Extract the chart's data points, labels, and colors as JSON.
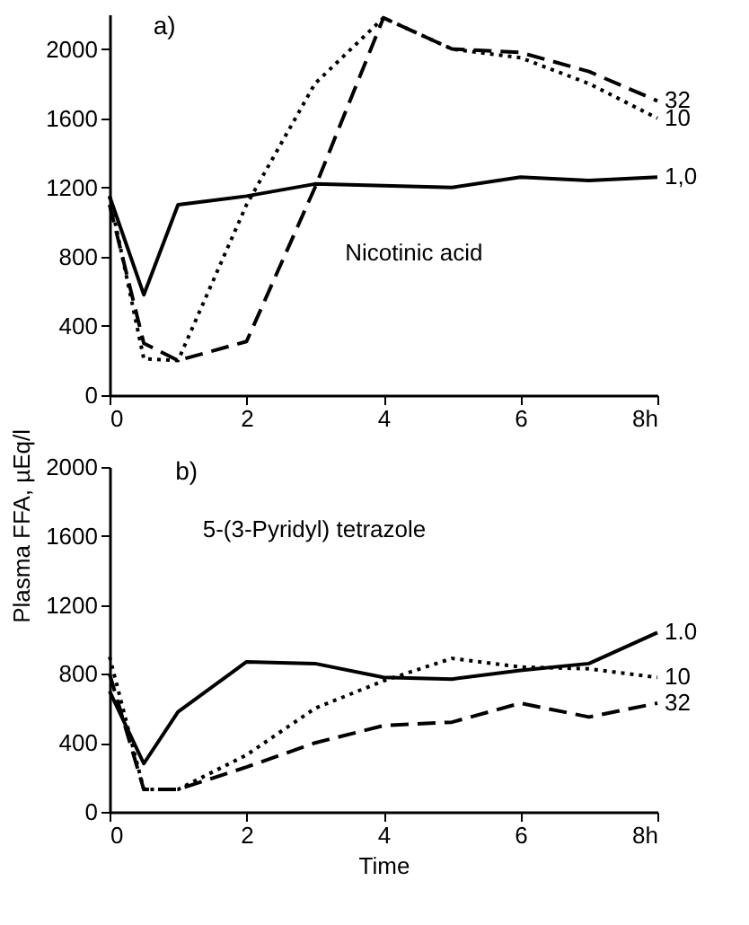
{
  "chart_data": [
    {
      "type": "line",
      "annotations": [
        "a)",
        "Nicotinic acid"
      ],
      "x": [
        0,
        0.5,
        1,
        2,
        3,
        4,
        5,
        6,
        7,
        8
      ],
      "series": [
        {
          "name": "1,0",
          "color": "#000000",
          "line_style": "solid",
          "values": [
            1150,
            580,
            1100,
            1150,
            1220,
            1210,
            1200,
            1260,
            1240,
            1260
          ]
        },
        {
          "name": "10",
          "color": "#000000",
          "line_style": "dotted",
          "values": [
            1150,
            210,
            200,
            1100,
            1800,
            2180,
            2000,
            1950,
            1800,
            1600
          ]
        },
        {
          "name": "32",
          "color": "#000000",
          "line_style": "dashed",
          "values": [
            1100,
            300,
            200,
            310,
            1200,
            2180,
            2000,
            1980,
            1870,
            1700
          ]
        }
      ],
      "xlim": [
        0,
        8
      ],
      "xticks": [
        0,
        2,
        4,
        6,
        {
          "value": 8,
          "label": "8h"
        }
      ],
      "ylim": [
        0,
        2200
      ],
      "yticks": [
        0,
        400,
        800,
        1200,
        1600,
        2000
      ],
      "legend": false,
      "grid": false
    },
    {
      "type": "line",
      "xlabel": "Time",
      "ylabel": "Plasma FFA, µEq/l",
      "annotations": [
        "b)",
        "5-(3-Pyridyl) tetrazole"
      ],
      "x": [
        0,
        0.5,
        1,
        2,
        3,
        4,
        5,
        6,
        7,
        8
      ],
      "series": [
        {
          "name": "1.0",
          "color": "#000000",
          "line_style": "solid",
          "values": [
            700,
            280,
            580,
            870,
            860,
            780,
            770,
            820,
            860,
            1040
          ]
        },
        {
          "name": "10",
          "color": "#000000",
          "line_style": "dotted",
          "values": [
            900,
            130,
            130,
            330,
            600,
            760,
            890,
            840,
            830,
            780
          ]
        },
        {
          "name": "32",
          "color": "#000000",
          "line_style": "dashed",
          "values": [
            800,
            130,
            130,
            260,
            400,
            500,
            520,
            630,
            550,
            630
          ]
        }
      ],
      "xlim": [
        0,
        8
      ],
      "xticks": [
        0,
        2,
        4,
        6,
        {
          "value": 8,
          "label": "8h"
        }
      ],
      "ylim": [
        0,
        2000
      ],
      "yticks": [
        0,
        400,
        800,
        1200,
        1600,
        2000
      ],
      "legend": false,
      "grid": false
    }
  ]
}
